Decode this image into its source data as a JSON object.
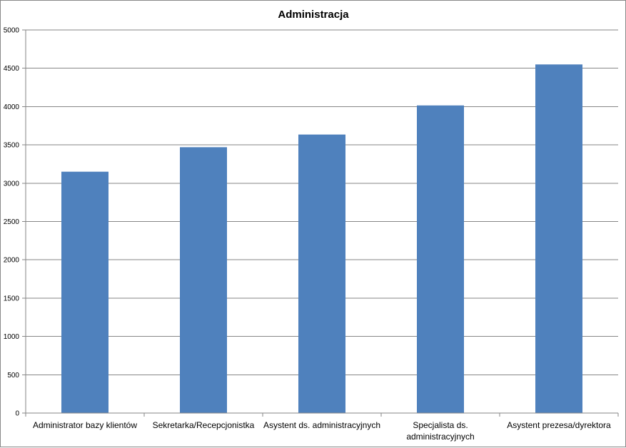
{
  "chart_data": {
    "type": "bar",
    "title": "Administracja",
    "categories": [
      [
        "Administrator bazy klientów"
      ],
      [
        "Sekretarka/Recepcjonistka"
      ],
      [
        "Asystent ds. administracyjnych"
      ],
      [
        "Specjalista ds.",
        "administracyjnych"
      ],
      [
        "Asystent prezesa/dyrektora"
      ]
    ],
    "values": [
      3150,
      3470,
      3635,
      4015,
      4550
    ],
    "ylim": [
      0,
      5000
    ],
    "yticks": [
      0,
      500,
      1000,
      1500,
      2000,
      2500,
      3000,
      3500,
      4000,
      4500,
      5000
    ],
    "grid": true,
    "legend": "none",
    "bar_color": "#4F81BD",
    "grid_color": "#868686"
  }
}
